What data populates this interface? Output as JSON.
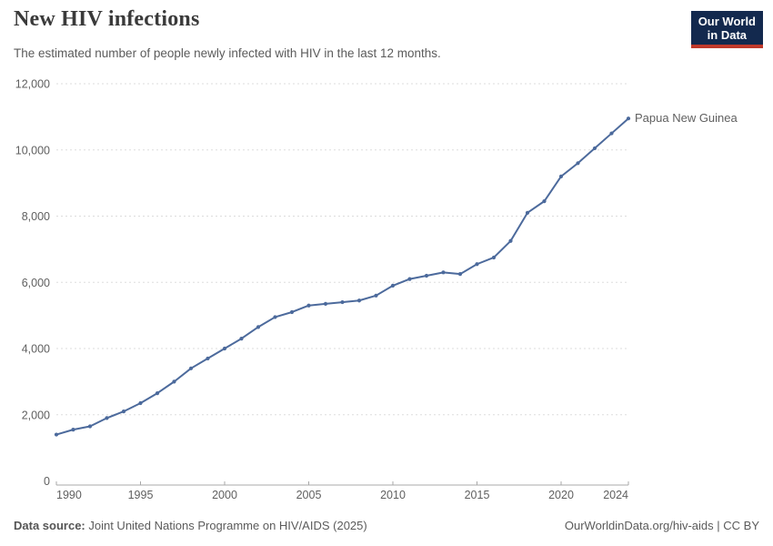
{
  "header": {
    "title": "New HIV infections",
    "subtitle": "The estimated number of people newly infected with HIV in the last 12 months.",
    "logo": {
      "line1": "Our World",
      "line2": "in Data",
      "bg_color": "#13294E",
      "accent_color": "#C0392B"
    }
  },
  "chart_data": {
    "type": "line",
    "title": "New HIV infections",
    "entity": "Papua New Guinea",
    "x": [
      1990,
      1991,
      1992,
      1993,
      1994,
      1995,
      1996,
      1997,
      1998,
      1999,
      2000,
      2001,
      2002,
      2003,
      2004,
      2005,
      2006,
      2007,
      2008,
      2009,
      2010,
      2011,
      2012,
      2013,
      2014,
      2015,
      2016,
      2017,
      2018,
      2019,
      2020,
      2021,
      2022,
      2023,
      2024
    ],
    "values": [
      1400,
      1550,
      1650,
      1900,
      2100,
      2350,
      2650,
      3000,
      3400,
      3700,
      4000,
      4300,
      4650,
      4950,
      5100,
      5300,
      5350,
      5400,
      5450,
      5600,
      5900,
      6100,
      6200,
      6300,
      6250,
      6550,
      6750,
      7250,
      8100,
      8450,
      9200,
      9600,
      10050,
      10500,
      10950
    ],
    "xlabel": "",
    "ylabel": "",
    "xlim": [
      1990,
      2024
    ],
    "ylim": [
      0,
      12000
    ],
    "yticks": [
      0,
      2000,
      4000,
      6000,
      8000,
      10000,
      12000
    ],
    "ytick_labels": [
      "0",
      "2,000",
      "4,000",
      "6,000",
      "8,000",
      "10,000",
      "12,000"
    ],
    "xticks": [
      1990,
      1995,
      2000,
      2005,
      2010,
      2015,
      2020,
      2024
    ],
    "grid": "horizontal dashed",
    "legend_position": "end-of-line label",
    "line_color": "#4C6A9C",
    "grid_color": "#dddddd",
    "axis_color": "#a8a8a8"
  },
  "footer": {
    "source_label": "Data source:",
    "source_value": " Joint United Nations Programme on HIV/AIDS (2025)",
    "link": "OurWorldinData.org/hiv-aids | CC BY"
  }
}
